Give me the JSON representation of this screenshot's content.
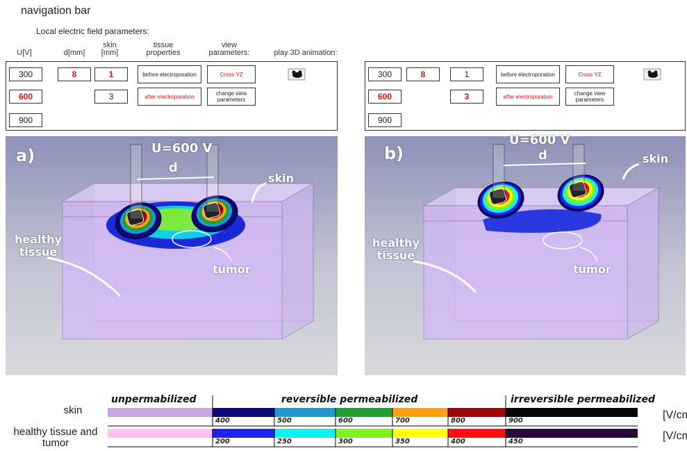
{
  "nav": {
    "title": "navigation bar",
    "subtitle": "Local electric field parameters:",
    "headers": [
      "U[V]",
      "d[mm]",
      "skin [mm]",
      "tissue properties",
      "view parameters:",
      "play 3D animation:"
    ]
  },
  "panels": [
    {
      "buttons": {
        "u": [
          {
            "label": "300",
            "active": false
          },
          {
            "label": "600",
            "active": true
          },
          {
            "label": "900",
            "active": false
          }
        ],
        "d": [
          {
            "label": "8",
            "active": true
          }
        ],
        "skin": [
          {
            "label": "1",
            "active": true
          },
          {
            "label": "3",
            "active": false
          }
        ],
        "tissue": [
          {
            "label": "before electroporation",
            "active": false
          },
          {
            "label": "after electroporation",
            "active": true
          }
        ],
        "view": [
          {
            "label": "Cross YZ",
            "active": true
          },
          {
            "label": "change view parameters",
            "active": false
          }
        ]
      },
      "scene": {
        "label": "a)",
        "voltage": "U=600 V",
        "distance": "d",
        "skin": "skin",
        "healthy": "healthy tissue",
        "tumor": "tumor"
      }
    },
    {
      "buttons": {
        "u": [
          {
            "label": "300",
            "active": false
          },
          {
            "label": "600",
            "active": true
          },
          {
            "label": "900",
            "active": false
          }
        ],
        "d": [
          {
            "label": "8",
            "active": true
          }
        ],
        "skin": [
          {
            "label": "1",
            "active": false
          },
          {
            "label": "3",
            "active": true
          }
        ],
        "tissue": [
          {
            "label": "before electroporation",
            "active": false
          },
          {
            "label": "after electroporation",
            "active": true
          }
        ],
        "view": [
          {
            "label": "Cross YZ",
            "active": true
          },
          {
            "label": "change view parameters",
            "active": false
          }
        ]
      },
      "scene": {
        "label": "b)",
        "voltage": "U=600 V",
        "distance": "d",
        "skin": "skin",
        "healthy": "healthy tissue",
        "tumor": "tumor"
      }
    }
  ],
  "legend": {
    "headers": [
      "unpermabilized",
      "reversible permeabilized",
      "irreversible permeabilized"
    ],
    "rows": [
      {
        "name": "skin",
        "base": "#c9a6e3",
        "colors": [
          "#0a0a78",
          "#1e98d0",
          "#20a030",
          "#ffa010",
          "#a00808",
          "#050505"
        ],
        "values": [
          400,
          500,
          600,
          700,
          800,
          900
        ],
        "unit": "[V/cm]"
      },
      {
        "name": "healthy tissue and tumor",
        "base": "#fcc3f2",
        "colors": [
          "#2222ee",
          "#10f0f0",
          "#80f020",
          "#ffff10",
          "#ff1010",
          "#2a0a3a"
        ],
        "values": [
          200,
          250,
          300,
          350,
          400,
          450
        ],
        "unit": "[V/cm]"
      }
    ]
  }
}
